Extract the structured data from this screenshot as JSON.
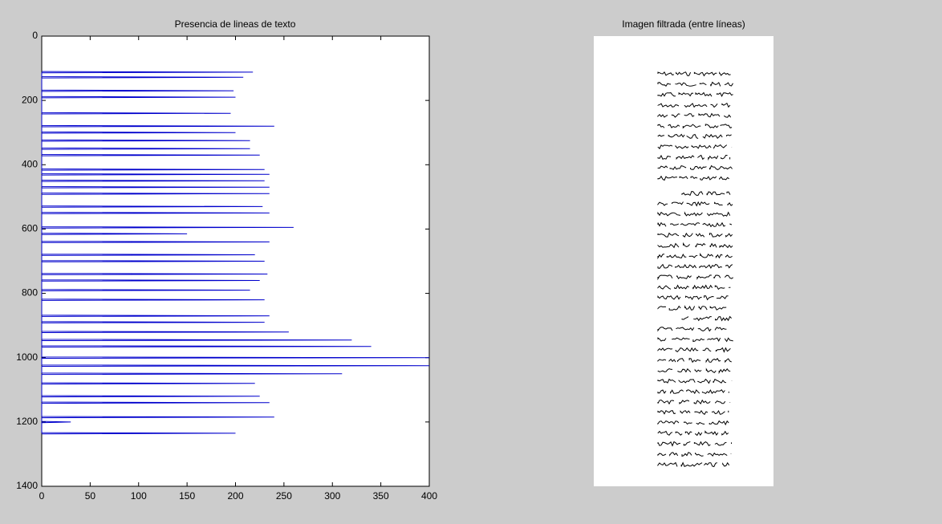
{
  "chart_data": [
    {
      "type": "line",
      "title": "Presencia de lineas de texto",
      "orientation": "horizontal",
      "y_reversed": true,
      "xlim": [
        0,
        400
      ],
      "xticks": [
        0,
        50,
        100,
        150,
        200,
        250,
        300,
        350,
        400
      ],
      "ylim": [
        0,
        1400
      ],
      "yticks": [
        0,
        200,
        400,
        600,
        800,
        1000,
        1200,
        1400
      ],
      "color": "#0000cc",
      "rows": [
        110,
        112,
        114,
        126,
        128,
        130,
        168,
        170,
        172,
        188,
        190,
        192,
        238,
        240,
        242,
        278,
        280,
        282,
        298,
        300,
        302,
        323,
        325,
        327,
        348,
        350,
        352,
        368,
        370,
        372,
        413,
        415,
        417,
        428,
        430,
        432,
        448,
        450,
        452,
        468,
        470,
        472,
        488,
        490,
        492,
        528,
        530,
        532,
        548,
        550,
        552,
        593,
        595,
        597,
        613,
        615,
        617,
        638,
        640,
        642,
        678,
        680,
        682,
        698,
        700,
        702,
        738,
        740,
        742,
        758,
        760,
        762,
        788,
        790,
        792,
        818,
        820,
        822,
        868,
        870,
        872,
        888,
        890,
        892,
        918,
        920,
        922,
        943,
        945,
        947,
        963,
        965,
        967,
        998,
        1000,
        1002,
        1023,
        1025,
        1027,
        1048,
        1050,
        1052,
        1078,
        1080,
        1082,
        1118,
        1120,
        1122,
        1138,
        1140,
        1142,
        1183,
        1185,
        1187,
        1198,
        1200,
        1202,
        1233,
        1235,
        1237
      ],
      "values": [
        0,
        218,
        0,
        0,
        208,
        0,
        0,
        198,
        0,
        0,
        200,
        0,
        0,
        195,
        0,
        0,
        240,
        0,
        0,
        200,
        0,
        0,
        215,
        0,
        0,
        215,
        0,
        0,
        225,
        0,
        0,
        230,
        0,
        0,
        235,
        0,
        0,
        230,
        0,
        0,
        235,
        0,
        0,
        235,
        0,
        0,
        228,
        0,
        0,
        235,
        0,
        0,
        260,
        0,
        0,
        150,
        0,
        0,
        235,
        0,
        0,
        220,
        0,
        0,
        230,
        0,
        0,
        233,
        0,
        0,
        225,
        0,
        0,
        215,
        0,
        0,
        230,
        0,
        0,
        235,
        0,
        0,
        230,
        0,
        0,
        255,
        0,
        0,
        320,
        0,
        0,
        340,
        0,
        0,
        400,
        0,
        0,
        400,
        0,
        0,
        310,
        0,
        0,
        220,
        0,
        0,
        225,
        0,
        0,
        235,
        0,
        0,
        240,
        0,
        0,
        30,
        0,
        0,
        200,
        0
      ]
    },
    {
      "type": "image",
      "title": "Imagen filtrada (entre líneas)"
    }
  ]
}
